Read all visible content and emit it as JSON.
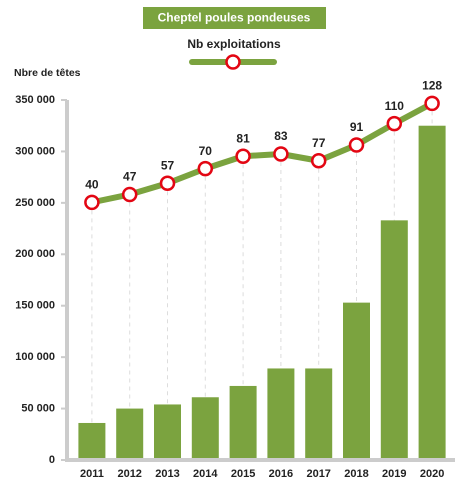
{
  "chart_data": {
    "type": "bar_line",
    "ylabel": "Nbre de têtes",
    "categories": [
      "2011",
      "2012",
      "2013",
      "2014",
      "2015",
      "2016",
      "2017",
      "2018",
      "2019",
      "2020"
    ],
    "series": [
      {
        "name": "Cheptel poules pondeuses",
        "color": "#7ba33f",
        "type": "bar",
        "values": [
          36000,
          50000,
          54000,
          61000,
          72000,
          89000,
          89000,
          153000,
          233000,
          325000
        ]
      },
      {
        "name": "Nb exploitations",
        "color": "#7ba33f",
        "marker_color": "#e30613",
        "type": "line",
        "axis": "y2",
        "values": [
          40,
          47,
          57,
          70,
          81,
          83,
          77,
          91,
          110,
          128
        ]
      }
    ],
    "ylim": [
      0,
      350000
    ],
    "yticks": [
      0,
      {
        "value": 50000,
        "label": "50 000"
      },
      {
        "value": 100000,
        "label": "100 000"
      },
      {
        "value": 150000,
        "label": "150 000"
      },
      {
        "value": 200000,
        "label": "200 000"
      },
      {
        "value": 250000,
        "label": "250 000"
      },
      {
        "value": 300000,
        "label": "300 000"
      },
      {
        "value": 350000,
        "label": "350 000"
      }
    ],
    "y2lim": [
      -189,
      131
    ],
    "grid": false
  }
}
